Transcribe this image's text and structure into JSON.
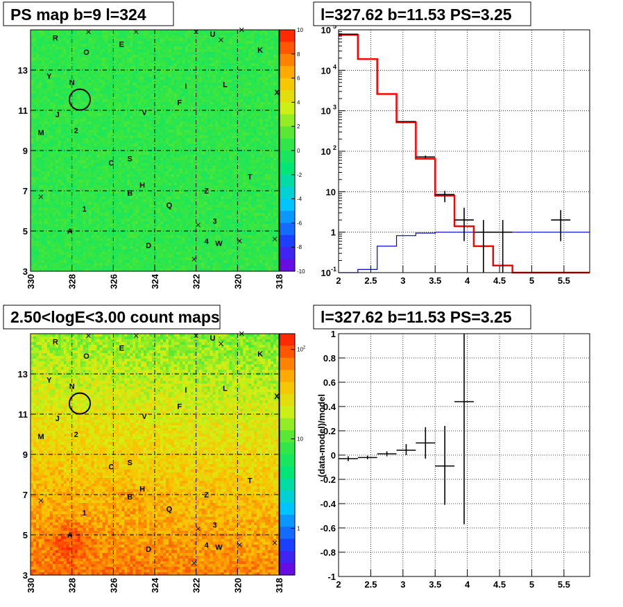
{
  "panels": {
    "ps_map": {
      "title": "PS map b=9 l=324"
    },
    "spectrum": {
      "title": "l=327.62 b=11.53 PS=3.25"
    },
    "count_map": {
      "title": "2.50<logE<3.00 count maps"
    },
    "residual": {
      "title": "l=327.62 b=11.53 PS=3.25"
    }
  },
  "colors": {
    "model_line": "#ff0000",
    "background_line": "#0000cc",
    "data": "#000000"
  },
  "chart_data": [
    {
      "type": "heatmap",
      "id": "ps_map",
      "title": "PS map b=9 l=324",
      "x_ticks": [
        "330",
        "328",
        "326",
        "324",
        "322",
        "320",
        "318"
      ],
      "y_ticks": [
        "3",
        "5",
        "7",
        "9",
        "11",
        "13"
      ],
      "xlim": [
        330,
        318
      ],
      "ylim": [
        3,
        15
      ],
      "colorbar": {
        "range": [
          -10,
          10
        ],
        "ticks": [
          "10",
          "8",
          "6",
          "4",
          "2",
          "0",
          "-2",
          "-4",
          "-6",
          "-8",
          "-10"
        ],
        "scale": "linear"
      },
      "marker_circle": {
        "l": 327.62,
        "b": 11.53
      },
      "source_labels": [
        {
          "t": "R",
          "l": 328.8,
          "b": 14.6
        },
        {
          "t": "E",
          "l": 325.6,
          "b": 14.3
        },
        {
          "t": "U",
          "l": 321.2,
          "b": 14.8
        },
        {
          "t": "K",
          "l": 318.9,
          "b": 14.0
        },
        {
          "t": "O",
          "l": 327.3,
          "b": 13.9
        },
        {
          "t": "Y",
          "l": 329.1,
          "b": 12.7
        },
        {
          "t": "N",
          "l": 328.0,
          "b": 12.4
        },
        {
          "t": "I",
          "l": 322.5,
          "b": 12.2
        },
        {
          "t": "L",
          "l": 320.6,
          "b": 12.3
        },
        {
          "t": "X",
          "l": 318.1,
          "b": 11.9
        },
        {
          "t": "F",
          "l": 322.8,
          "b": 11.4
        },
        {
          "t": "J",
          "l": 328.7,
          "b": 10.8
        },
        {
          "t": "V",
          "l": 324.5,
          "b": 10.9
        },
        {
          "t": "M",
          "l": 329.5,
          "b": 9.9
        },
        {
          "t": "2",
          "l": 327.8,
          "b": 10.0
        },
        {
          "t": "C",
          "l": 326.1,
          "b": 8.4
        },
        {
          "t": "S",
          "l": 325.2,
          "b": 8.6
        },
        {
          "t": "T",
          "l": 319.4,
          "b": 7.7
        },
        {
          "t": "H",
          "l": 324.6,
          "b": 7.3
        },
        {
          "t": "B",
          "l": 325.2,
          "b": 6.9
        },
        {
          "t": "Z",
          "l": 321.5,
          "b": 7.0
        },
        {
          "t": "1",
          "l": 327.4,
          "b": 6.1
        },
        {
          "t": "Q",
          "l": 323.3,
          "b": 6.3
        },
        {
          "t": "3",
          "l": 321.1,
          "b": 5.5
        },
        {
          "t": "A",
          "l": 328.1,
          "b": 5.0
        },
        {
          "t": "4",
          "l": 321.5,
          "b": 4.5
        },
        {
          "t": "W",
          "l": 320.9,
          "b": 4.4
        },
        {
          "t": "D",
          "l": 324.3,
          "b": 4.3
        }
      ]
    },
    {
      "type": "line",
      "id": "spectrum",
      "title": "l=327.62 b=11.53 PS=3.25",
      "xlim": [
        2,
        5.9
      ],
      "ylim": [
        0.1,
        100000
      ],
      "yscale": "log",
      "x_ticks": [
        "2",
        "2.5",
        "3",
        "3.5",
        "4",
        "4.5",
        "5",
        "5.5"
      ],
      "y_ticks": [
        {
          "label": "10",
          "sup": "-1",
          "v": 0.1
        },
        {
          "label": "1",
          "sup": "",
          "v": 1
        },
        {
          "label": "10",
          "sup": "",
          "v": 10
        },
        {
          "label": "10",
          "sup": "2",
          "v": 100
        },
        {
          "label": "10",
          "sup": "3",
          "v": 1000
        },
        {
          "label": "10",
          "sup": "4",
          "v": 10000
        },
        {
          "label": "10",
          "sup": "5",
          "v": 100000
        }
      ],
      "grid": true,
      "model_steps": [
        {
          "x0": 2.0,
          "x1": 2.3,
          "y": 75000
        },
        {
          "x0": 2.3,
          "x1": 2.6,
          "y": 19000
        },
        {
          "x0": 2.6,
          "x1": 2.9,
          "y": 2600
        },
        {
          "x0": 2.9,
          "x1": 3.2,
          "y": 520
        },
        {
          "x0": 3.2,
          "x1": 3.5,
          "y": 65
        },
        {
          "x0": 3.5,
          "x1": 3.8,
          "y": 8
        },
        {
          "x0": 3.8,
          "x1": 4.1,
          "y": 1.4
        },
        {
          "x0": 4.1,
          "x1": 4.4,
          "y": 0.45
        },
        {
          "x0": 4.4,
          "x1": 4.7,
          "y": 0.15
        },
        {
          "x0": 4.7,
          "x1": 5.9,
          "y": 0.1
        }
      ],
      "background_steps": [
        {
          "x0": 2.0,
          "x1": 2.3,
          "y": 0.1
        },
        {
          "x0": 2.3,
          "x1": 2.6,
          "y": 0.12
        },
        {
          "x0": 2.6,
          "x1": 2.9,
          "y": 0.45
        },
        {
          "x0": 2.9,
          "x1": 3.2,
          "y": 0.82
        },
        {
          "x0": 3.2,
          "x1": 3.5,
          "y": 0.95
        },
        {
          "x0": 3.5,
          "x1": 3.8,
          "y": 1.0
        },
        {
          "x0": 3.8,
          "x1": 5.9,
          "y": 1.0
        }
      ],
      "data_points": [
        {
          "x": 2.15,
          "y": 78000,
          "ylo": 77000,
          "yhi": 79000,
          "xerr": 0.15
        },
        {
          "x": 3.05,
          "y": 540,
          "ylo": 525,
          "yhi": 555,
          "xerr": 0.15
        },
        {
          "x": 3.35,
          "y": 72,
          "ylo": 66,
          "yhi": 78,
          "xerr": 0.15
        },
        {
          "x": 3.65,
          "y": 8.5,
          "ylo": 5.5,
          "yhi": 10.5,
          "xerr": 0.15
        },
        {
          "x": 3.95,
          "y": 2,
          "ylo": 0.6,
          "yhi": 4,
          "xerr": 0.15
        },
        {
          "x": 4.25,
          "y": 1,
          "ylo": 0.1,
          "yhi": 2,
          "xerr": 0.15
        },
        {
          "x": 4.55,
          "y": 1,
          "ylo": 0.1,
          "yhi": 2,
          "xerr": 0.15
        },
        {
          "x": 5.45,
          "y": 2,
          "ylo": 0.6,
          "yhi": 3.5,
          "xerr": 0.15
        }
      ]
    },
    {
      "type": "heatmap",
      "id": "count_map",
      "title": "2.50<logE<3.00 count maps",
      "x_ticks": [
        "330",
        "328",
        "326",
        "324",
        "322",
        "320",
        "318"
      ],
      "y_ticks": [
        "3",
        "5",
        "7",
        "9",
        "11",
        "13"
      ],
      "xlim": [
        330,
        318
      ],
      "ylim": [
        3,
        15
      ],
      "colorbar": {
        "scale": "log",
        "ticks": [
          {
            "label": "1",
            "sup": "",
            "v": 1
          },
          {
            "label": "10",
            "sup": "",
            "v": 10
          },
          {
            "label": "10",
            "sup": "2",
            "v": 100
          }
        ]
      },
      "marker_circle": {
        "l": 327.62,
        "b": 11.53
      }
    },
    {
      "type": "scatter",
      "id": "residual",
      "title": "l=327.62 b=11.53 PS=3.25",
      "ylabel": "(data-model)/model",
      "xlim": [
        2,
        5.9
      ],
      "ylim": [
        -1,
        1
      ],
      "x_ticks": [
        "2",
        "2.5",
        "3",
        "3.5",
        "4",
        "4.5",
        "5",
        "5.5"
      ],
      "y_ticks": [
        "1",
        "0.8",
        "0.6",
        "0.4",
        "0.2",
        "0",
        "-0.2",
        "-0.4",
        "-0.6",
        "-0.8",
        "-1"
      ],
      "grid": true,
      "points": [
        {
          "x": 2.15,
          "y": -0.03,
          "ylo": -0.05,
          "yhi": -0.01,
          "xerr": 0.15
        },
        {
          "x": 2.45,
          "y": -0.02,
          "ylo": -0.035,
          "yhi": -0.005,
          "xerr": 0.15
        },
        {
          "x": 2.75,
          "y": 0.01,
          "ylo": -0.01,
          "yhi": 0.03,
          "xerr": 0.15
        },
        {
          "x": 3.05,
          "y": 0.04,
          "ylo": 0.0,
          "yhi": 0.09,
          "xerr": 0.15
        },
        {
          "x": 3.35,
          "y": 0.1,
          "ylo": -0.03,
          "yhi": 0.23,
          "xerr": 0.15
        },
        {
          "x": 3.65,
          "y": -0.09,
          "ylo": -0.41,
          "yhi": 0.24,
          "xerr": 0.15
        },
        {
          "x": 3.95,
          "y": 0.44,
          "ylo": -0.57,
          "yhi": 1.0,
          "xerr": 0.15
        }
      ]
    }
  ]
}
